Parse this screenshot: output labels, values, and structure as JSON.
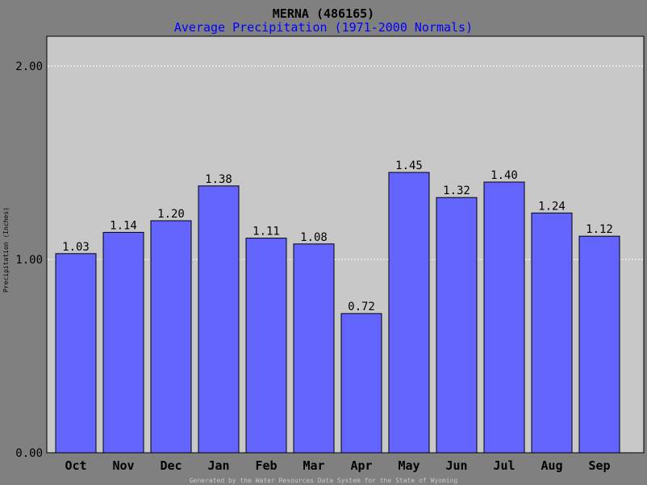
{
  "colors": {
    "page_bg": "#808080",
    "plot_bg": "#c8c8c8",
    "bar_fill": "#6464ff",
    "subtitle": "#0000ff",
    "grid": "#ffffff"
  },
  "chart_data": {
    "type": "bar",
    "title": "MERNA (486165)",
    "subtitle": "Average Precipitation (1971-2000 Normals)",
    "ylabel": "Precipitation (Inches)",
    "xlabel": "",
    "ylim": [
      0,
      2.2
    ],
    "yticks": [
      "0.00",
      "1.00",
      "2.00"
    ],
    "grid": "horizontal dashed at 1.00 and 2.00",
    "categories": [
      "Oct",
      "Nov",
      "Dec",
      "Jan",
      "Feb",
      "Mar",
      "Apr",
      "May",
      "Jun",
      "Jul",
      "Aug",
      "Sep"
    ],
    "values": [
      1.03,
      1.14,
      1.2,
      1.38,
      1.11,
      1.08,
      0.72,
      1.45,
      1.32,
      1.4,
      1.24,
      1.12
    ],
    "value_labels": [
      "1.03",
      "1.14",
      "1.20",
      "1.38",
      "1.11",
      "1.08",
      "0.72",
      "1.45",
      "1.32",
      "1.40",
      "1.24",
      "1.12"
    ],
    "footer": "Generated by the Water Resources Data System for the State of Wyoming"
  }
}
